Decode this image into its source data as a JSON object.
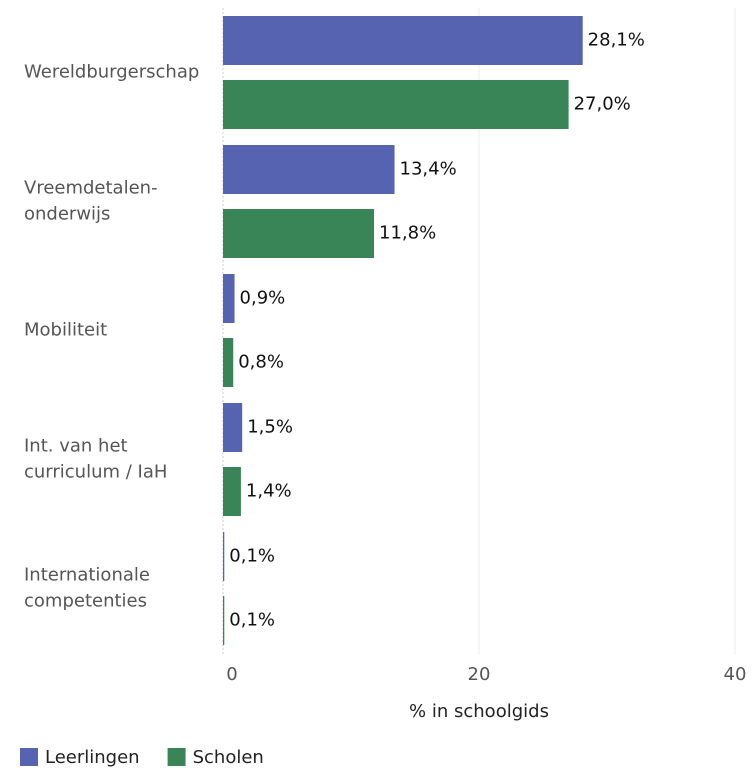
{
  "chart_data": {
    "type": "bar",
    "orientation": "horizontal",
    "categories": [
      "Wereldburgerschap",
      "Vreemdetalen-\nonderwijs",
      "Mobiliteit",
      "Int. van het\ncurriculum / IaH",
      "Internationale\ncompetenties"
    ],
    "series": [
      {
        "name": "Leerlingen",
        "color": "#5563b0",
        "values": [
          28.1,
          13.4,
          0.9,
          1.5,
          0.1
        ],
        "value_labels": [
          "28,1%",
          "13,4%",
          "0,9%",
          "1,5%",
          "0,1%"
        ]
      },
      {
        "name": "Scholen",
        "color": "#3a8558",
        "values": [
          27.0,
          11.8,
          0.8,
          1.4,
          0.1
        ],
        "value_labels": [
          "27,0%",
          "11,8%",
          "0,8%",
          "1,4%",
          "0,1%"
        ]
      }
    ],
    "xlabel": "% in schoolgids",
    "xlim": [
      0,
      40
    ],
    "xticks": [
      0,
      20,
      40
    ],
    "grid": true,
    "legend": "bottom-left"
  }
}
